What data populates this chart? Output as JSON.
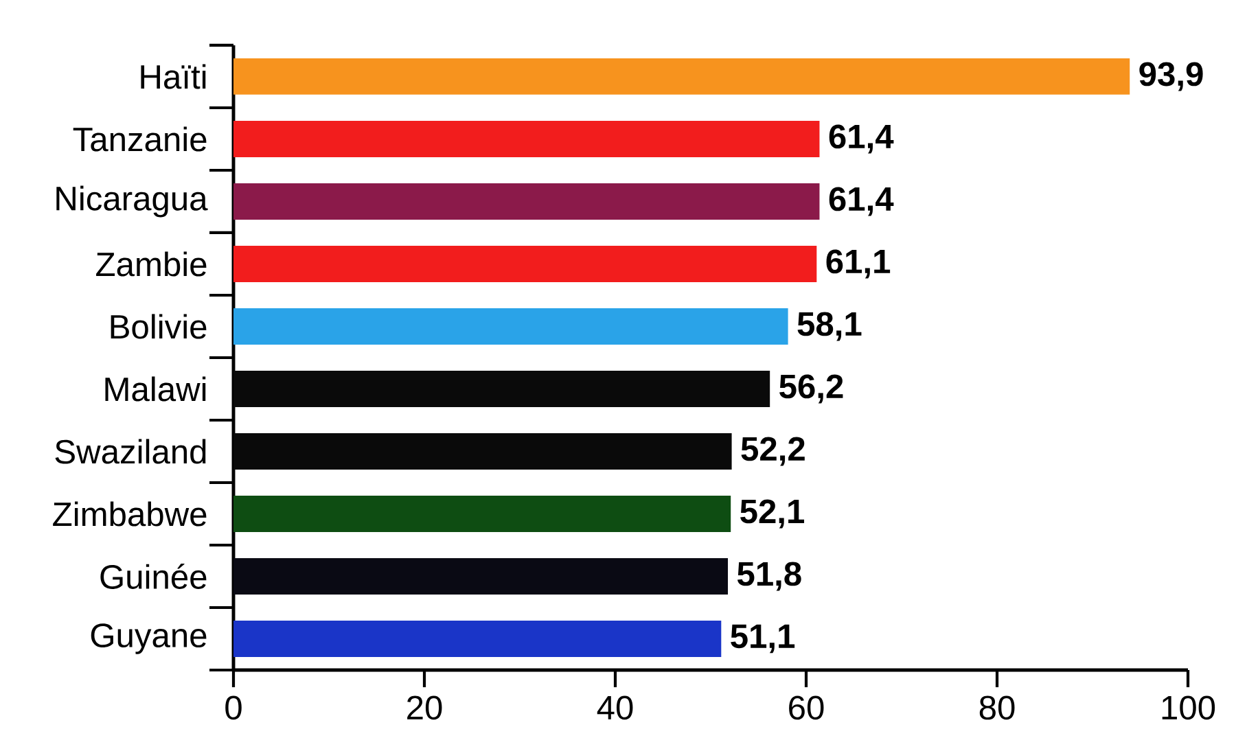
{
  "chart_data": {
    "type": "bar",
    "orientation": "horizontal",
    "categories": [
      "Haïti",
      "Tanzanie",
      "Nicaragua",
      "Zambie",
      "Bolivie",
      "Malawi",
      "Swaziland",
      "Zimbabwe",
      "Guinée",
      "Guyane"
    ],
    "values": [
      93.9,
      61.4,
      61.4,
      61.1,
      58.1,
      56.2,
      52.2,
      52.1,
      51.8,
      51.1
    ],
    "value_labels": [
      "93,9",
      "61,4",
      "61,4",
      "61,1",
      "58,1",
      "56,2",
      "52,2",
      "52,1",
      "51,8",
      "51,1"
    ],
    "colors": [
      "#f7931e",
      "#f21d1d",
      "#8b1a4a",
      "#f21d1d",
      "#2aa3e8",
      "#0a0a0a",
      "#0a0a0a",
      "#0e4d12",
      "#0a0a14",
      "#1a35c8"
    ],
    "xlim": [
      0,
      100
    ],
    "xticks": [
      0,
      20,
      40,
      60,
      80,
      100
    ],
    "grid": false
  }
}
